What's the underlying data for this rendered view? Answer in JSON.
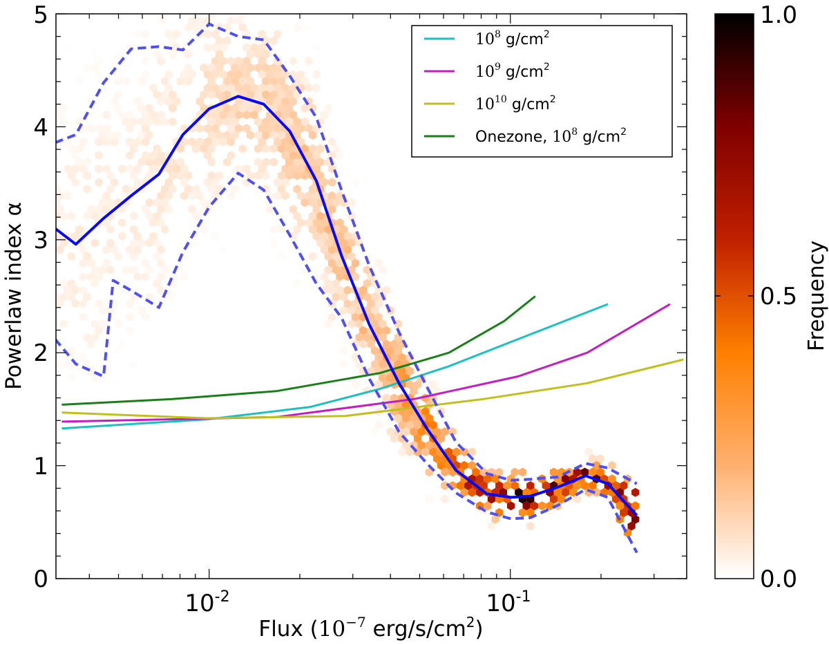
{
  "chart_data": {
    "type": "scatter",
    "subtype": "hexbin density with overlaid lines",
    "title": "",
    "xlabel": {
      "main": "Flux (",
      "base": "10",
      "exp": "−7",
      "unit": " erg/s/cm",
      "unit_exp": "2",
      "close": ")"
    },
    "ylabel": "Powerlaw index α",
    "xscale": "log",
    "xlim": [
      0.0031,
      0.385
    ],
    "ylim": [
      0,
      5
    ],
    "xticks": [
      {
        "value": 0.01,
        "base": "10",
        "exp": "-2"
      },
      {
        "value": 0.1,
        "base": "10",
        "exp": "-1"
      }
    ],
    "yticks": [
      "0",
      "1",
      "2",
      "3",
      "4",
      "5"
    ],
    "grid": false,
    "legend": {
      "placement": "top-right",
      "entries": [
        {
          "base": "10",
          "exp": "8",
          "unit": " g/cm",
          "unit_exp": "2",
          "prefix": "",
          "color": "#1fbfbf"
        },
        {
          "base": "10",
          "exp": "9",
          "unit": " g/cm",
          "unit_exp": "2",
          "prefix": "",
          "color": "#bf1fbf"
        },
        {
          "base": "10",
          "exp": "10",
          "unit": " g/cm",
          "unit_exp": "2",
          "prefix": "",
          "color": "#bfbf1f"
        },
        {
          "base": "10",
          "exp": "8",
          "unit": " g/cm",
          "unit_exp": "2",
          "prefix": "Onezone, ",
          "color": "#1a7f1a"
        }
      ]
    },
    "series": [
      {
        "name": "10^8 g/cm^2",
        "color": "#1fbfbf",
        "style": "solid",
        "x": [
          0.00324,
          0.00984,
          0.0217,
          0.0369,
          0.0625,
          0.106,
          0.211
        ],
        "y": [
          1.33,
          1.41,
          1.52,
          1.68,
          1.88,
          2.12,
          2.43
        ]
      },
      {
        "name": "10^9 g/cm^2",
        "color": "#bf1fbf",
        "style": "solid",
        "x": [
          0.00324,
          0.0167,
          0.048,
          0.106,
          0.18,
          0.339
        ],
        "y": [
          1.39,
          1.43,
          1.59,
          1.79,
          2.0,
          2.43
        ]
      },
      {
        "name": "10^10 g/cm^2",
        "color": "#bfbf1f",
        "style": "solid",
        "x": [
          0.00324,
          0.00984,
          0.0283,
          0.0815,
          0.18,
          0.376
        ],
        "y": [
          1.47,
          1.42,
          1.44,
          1.59,
          1.73,
          1.94
        ]
      },
      {
        "name": "Onezone, 10^8 g/cm^2",
        "color": "#1a7f1a",
        "style": "solid",
        "x": [
          0.00324,
          0.00755,
          0.0167,
          0.0369,
          0.0625,
          0.0954,
          0.121
        ],
        "y": [
          1.54,
          1.59,
          1.66,
          1.82,
          2.0,
          2.28,
          2.5
        ]
      },
      {
        "color": "#0a0aee",
        "style": "solid",
        "x": [
          0.00308,
          0.00361,
          0.00446,
          0.00551,
          0.00681,
          0.00818,
          0.01,
          0.01248,
          0.01518,
          0.01853,
          0.0227,
          0.0275,
          0.034,
          0.0427,
          0.0528,
          0.0659,
          0.0836,
          0.1005,
          0.1166,
          0.1439,
          0.1778,
          0.2105,
          0.263
        ],
        "y": [
          3.1,
          2.96,
          3.19,
          3.39,
          3.58,
          3.93,
          4.16,
          4.27,
          4.2,
          3.96,
          3.52,
          2.86,
          2.25,
          1.73,
          1.33,
          0.96,
          0.75,
          0.72,
          0.73,
          0.81,
          0.91,
          0.84,
          0.56
        ]
      },
      {
        "color": "#5050ee",
        "style": "dashed",
        "x": [
          0.00308,
          0.00361,
          0.00446,
          0.00551,
          0.00681,
          0.00818,
          0.01,
          0.01248,
          0.01518,
          0.01853,
          0.0227,
          0.0275,
          0.034,
          0.0427,
          0.0528,
          0.0659,
          0.0836,
          0.1005,
          0.1166,
          0.1439,
          0.1778,
          0.2105,
          0.263
        ],
        "y": [
          3.86,
          3.93,
          4.39,
          4.69,
          4.71,
          4.68,
          4.91,
          4.8,
          4.77,
          4.45,
          4.08,
          3.44,
          2.77,
          2.18,
          1.7,
          1.21,
          0.93,
          0.87,
          0.88,
          0.9,
          1.02,
          0.98,
          0.84
        ]
      },
      {
        "color": "#5050ee",
        "style": "dashed",
        "x": [
          0.00308,
          0.00361,
          0.00446,
          0.0048,
          0.00551,
          0.00681,
          0.00818,
          0.01,
          0.01248,
          0.01518,
          0.01853,
          0.0227,
          0.0275,
          0.034,
          0.0427,
          0.0528,
          0.0659,
          0.0836,
          0.1005,
          0.1166,
          0.1439,
          0.1778,
          0.2105,
          0.263
        ],
        "y": [
          2.12,
          1.9,
          1.79,
          2.64,
          2.55,
          2.4,
          2.89,
          3.29,
          3.59,
          3.44,
          3.04,
          2.61,
          2.31,
          1.77,
          1.3,
          1.02,
          0.76,
          0.59,
          0.53,
          0.54,
          0.65,
          0.79,
          0.72,
          0.23
        ]
      }
    ],
    "colorbar": {
      "label": "Frequency",
      "range": [
        0.0,
        1.0
      ],
      "ticks": [
        "0.0",
        "0.5",
        "1.0"
      ],
      "colors": [
        "#ffffff",
        "#ffb070",
        "#ff8000",
        "#c02000",
        "#800000",
        "#000000"
      ]
    }
  }
}
